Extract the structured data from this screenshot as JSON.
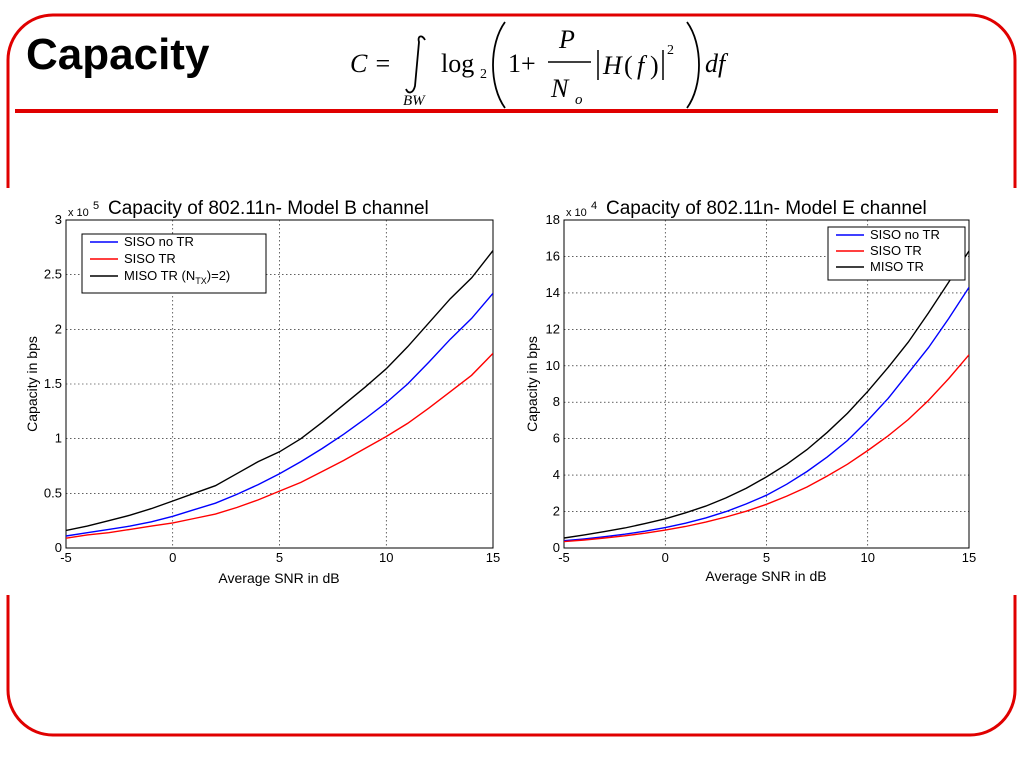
{
  "slide": {
    "title": "Capacity",
    "formula": {
      "lhs": "C =",
      "integral_sub": "BW",
      "log": "log",
      "log_base": "2",
      "one_plus": "1+",
      "numerator": "P",
      "denominator": "N",
      "denominator_sub": "o",
      "h": "H",
      "f": "f",
      "squared": "2",
      "df": "df"
    },
    "accent_color": "#e00000"
  },
  "chart_data": [
    {
      "type": "line",
      "title": "Capacity of 802.11n- Model B channel",
      "multiplier_base": "x 10",
      "multiplier_exp": "5",
      "xlabel": "Average SNR in dB",
      "ylabel": "Capacity in bps",
      "xlim": [
        -5,
        15
      ],
      "ylim": [
        0,
        3
      ],
      "x_ticks": [
        "-5",
        "0",
        "5",
        "10",
        "15"
      ],
      "y_ticks": [
        "0",
        "0.5",
        "1",
        "1.5",
        "2",
        "2.5",
        "3"
      ],
      "grid": true,
      "legend_position": "top-left",
      "x": [
        -5,
        -4,
        -3,
        -2,
        -1,
        0,
        1,
        2,
        3,
        4,
        5,
        6,
        7,
        8,
        9,
        10,
        11,
        12,
        13,
        14,
        15
      ],
      "series": [
        {
          "name": "SISO no TR",
          "legend_main": "SISO no TR",
          "legend_sub": "",
          "legend_tail": "",
          "color": "#0000ff",
          "values": [
            0.11,
            0.14,
            0.17,
            0.2,
            0.24,
            0.29,
            0.35,
            0.41,
            0.49,
            0.58,
            0.68,
            0.79,
            0.91,
            1.04,
            1.18,
            1.33,
            1.5,
            1.7,
            1.91,
            2.1,
            2.33
          ]
        },
        {
          "name": "SISO TR",
          "legend_main": "SISO TR",
          "legend_sub": "",
          "legend_tail": "",
          "color": "#ff0000",
          "values": [
            0.09,
            0.12,
            0.14,
            0.17,
            0.2,
            0.23,
            0.27,
            0.31,
            0.37,
            0.44,
            0.52,
            0.6,
            0.7,
            0.8,
            0.91,
            1.02,
            1.14,
            1.28,
            1.43,
            1.58,
            1.78
          ]
        },
        {
          "name": "MISO TR (NTX)=2)",
          "legend_main": "MISO TR (N",
          "legend_sub": "TX",
          "legend_tail": ")=2)",
          "color": "#000000",
          "values": [
            0.16,
            0.2,
            0.25,
            0.3,
            0.36,
            0.43,
            0.5,
            0.57,
            0.68,
            0.79,
            0.88,
            1.0,
            1.15,
            1.31,
            1.47,
            1.64,
            1.84,
            2.06,
            2.28,
            2.47,
            2.72
          ]
        }
      ]
    },
    {
      "type": "line",
      "title": "Capacity of 802.11n- Model E channel",
      "multiplier_base": "x 10",
      "multiplier_exp": "4",
      "xlabel": "Average SNR in dB",
      "ylabel": "Capacity in bps",
      "xlim": [
        -5,
        15
      ],
      "ylim": [
        0,
        18
      ],
      "x_ticks": [
        "-5",
        "0",
        "5",
        "10",
        "15"
      ],
      "y_ticks": [
        "0",
        "2",
        "4",
        "6",
        "8",
        "10",
        "12",
        "14",
        "16",
        "18"
      ],
      "grid": true,
      "legend_position": "top-right",
      "x": [
        -5,
        -4,
        -3,
        -2,
        -1,
        0,
        1,
        2,
        3,
        4,
        5,
        6,
        7,
        8,
        9,
        10,
        11,
        12,
        13,
        14,
        15
      ],
      "series": [
        {
          "name": "SISO no TR",
          "legend_main": "SISO no TR",
          "legend_sub": "",
          "legend_tail": "",
          "color": "#0000ff",
          "values": [
            0.4,
            0.5,
            0.62,
            0.76,
            0.92,
            1.12,
            1.36,
            1.65,
            2.0,
            2.42,
            2.9,
            3.5,
            4.2,
            5.0,
            5.9,
            7.0,
            8.2,
            9.6,
            11.0,
            12.6,
            14.3
          ]
        },
        {
          "name": "SISO TR",
          "legend_main": "SISO TR",
          "legend_sub": "",
          "legend_tail": "",
          "color": "#ff0000",
          "values": [
            0.35,
            0.44,
            0.55,
            0.67,
            0.81,
            0.98,
            1.18,
            1.42,
            1.7,
            2.02,
            2.4,
            2.85,
            3.35,
            3.95,
            4.6,
            5.35,
            6.15,
            7.05,
            8.1,
            9.3,
            10.6
          ]
        },
        {
          "name": "MISO TR",
          "legend_main": "MISO TR",
          "legend_sub": "",
          "legend_tail": "",
          "color": "#000000",
          "values": [
            0.55,
            0.72,
            0.9,
            1.1,
            1.34,
            1.6,
            1.93,
            2.3,
            2.75,
            3.28,
            3.9,
            4.6,
            5.4,
            6.35,
            7.4,
            8.6,
            9.9,
            11.3,
            12.9,
            14.6,
            16.3
          ]
        }
      ]
    }
  ]
}
